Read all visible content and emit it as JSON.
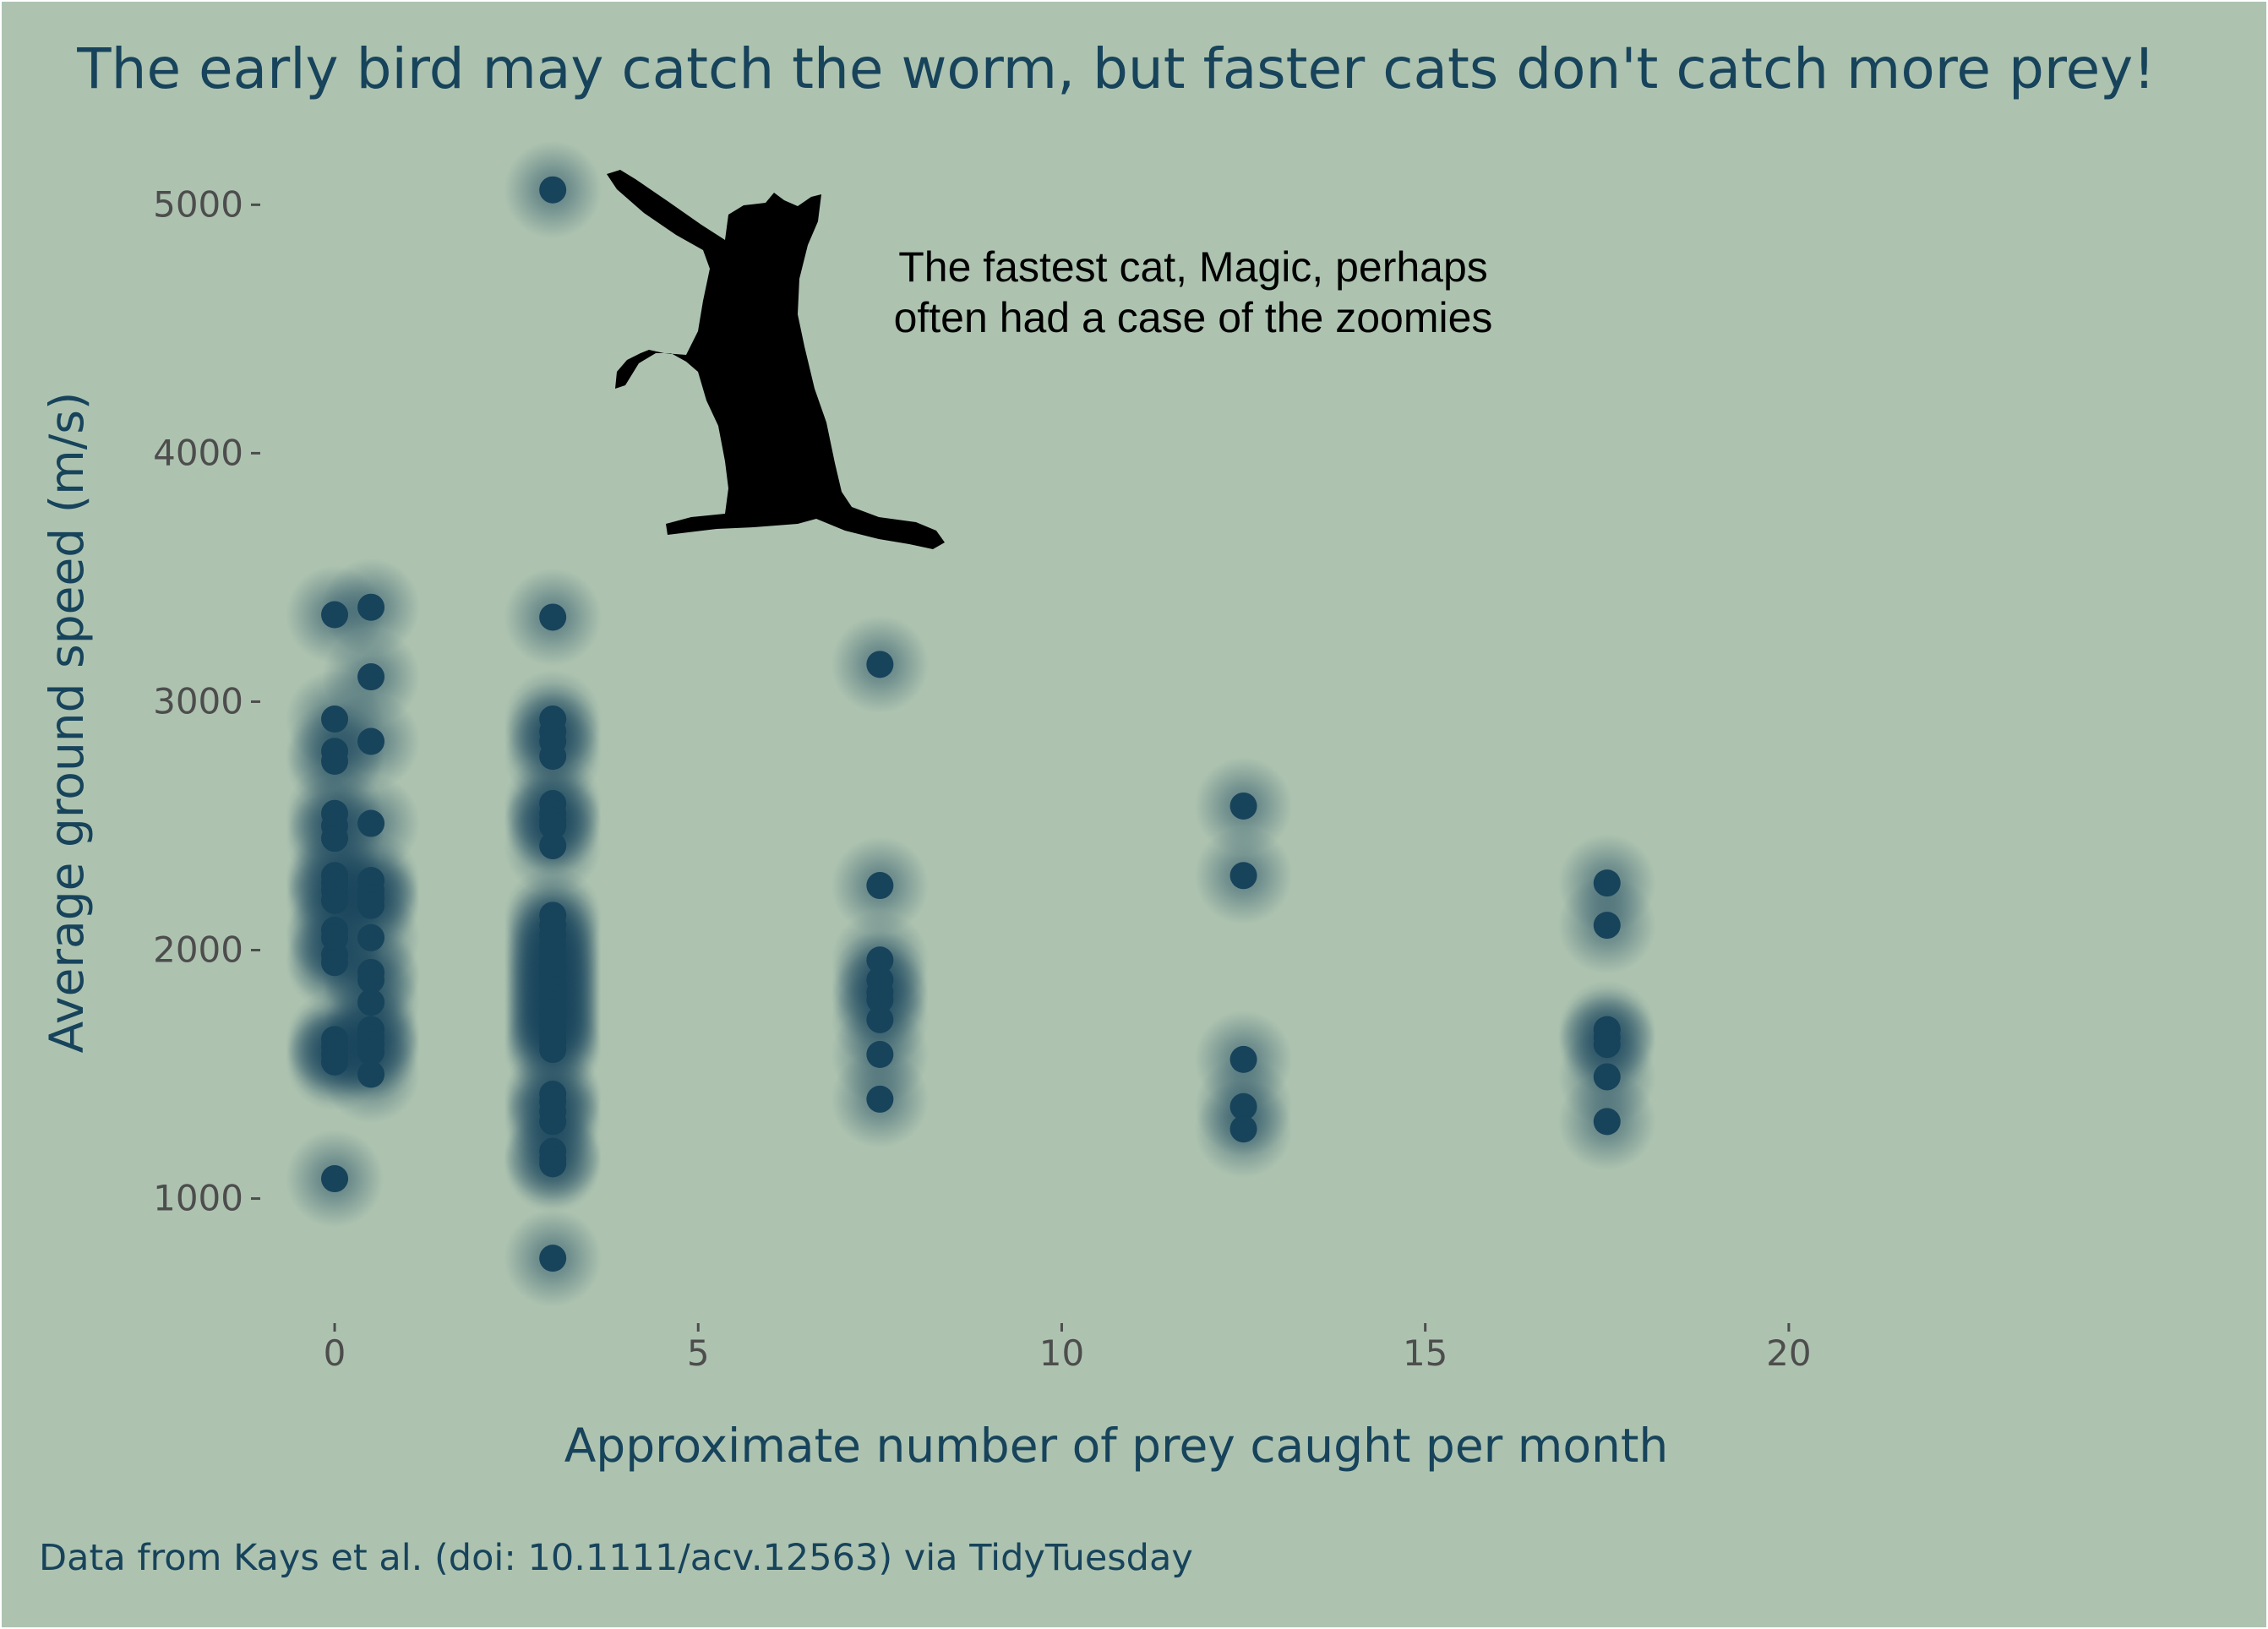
{
  "title": "The early bird may catch the worm, but faster cats don't catch more prey!",
  "caption": "Data from Kays et al. (doi: 10.1111/acv.12563) via TidyTuesday",
  "annotation": {
    "line1": "The fastest cat, Magic, perhaps",
    "line2": "often had a case of the zoomies"
  },
  "icons": {
    "cat": "cat-silhouette-icon"
  },
  "colors": {
    "background": "#adc3b0",
    "point": "#17435b",
    "text": "#17435b",
    "tick": "#4d4d4d",
    "frame": "#ffffff"
  },
  "chart_data": {
    "type": "scatter",
    "title": "The early bird may catch the worm, but faster cats don't catch more prey!",
    "xlabel": "Approximate number of prey caught per month",
    "ylabel": "Average ground speed (m/s)",
    "xlim": [
      -1,
      22.5
    ],
    "ylim": [
      570,
      5280
    ],
    "xticks": [
      0,
      5,
      10,
      15,
      20
    ],
    "yticks": [
      1000,
      2000,
      3000,
      4000,
      5000
    ],
    "grid": false,
    "legend": "none",
    "points": [
      {
        "x": 0,
        "y": 3350
      },
      {
        "x": 0,
        "y": 2930
      },
      {
        "x": 0,
        "y": 2800
      },
      {
        "x": 0,
        "y": 2760
      },
      {
        "x": 0,
        "y": 2550
      },
      {
        "x": 0,
        "y": 2500
      },
      {
        "x": 0,
        "y": 2450
      },
      {
        "x": 0,
        "y": 2300
      },
      {
        "x": 0,
        "y": 2270
      },
      {
        "x": 0,
        "y": 2240
      },
      {
        "x": 0,
        "y": 2200
      },
      {
        "x": 0,
        "y": 2080
      },
      {
        "x": 0,
        "y": 2050
      },
      {
        "x": 0,
        "y": 1980
      },
      {
        "x": 0,
        "y": 1950
      },
      {
        "x": 0,
        "y": 1640
      },
      {
        "x": 0,
        "y": 1610
      },
      {
        "x": 0,
        "y": 1580
      },
      {
        "x": 0,
        "y": 1550
      },
      {
        "x": 0,
        "y": 1080
      },
      {
        "x": 0.5,
        "y": 3380
      },
      {
        "x": 0.5,
        "y": 3100
      },
      {
        "x": 0.5,
        "y": 2840
      },
      {
        "x": 0.5,
        "y": 2510
      },
      {
        "x": 0.5,
        "y": 2280
      },
      {
        "x": 0.5,
        "y": 2240
      },
      {
        "x": 0.5,
        "y": 2210
      },
      {
        "x": 0.5,
        "y": 2180
      },
      {
        "x": 0.5,
        "y": 2050
      },
      {
        "x": 0.5,
        "y": 1910
      },
      {
        "x": 0.5,
        "y": 1880
      },
      {
        "x": 0.5,
        "y": 1790
      },
      {
        "x": 0.5,
        "y": 1680
      },
      {
        "x": 0.5,
        "y": 1650
      },
      {
        "x": 0.5,
        "y": 1620
      },
      {
        "x": 0.5,
        "y": 1590
      },
      {
        "x": 0.5,
        "y": 1500
      },
      {
        "x": 3,
        "y": 5060
      },
      {
        "x": 3,
        "y": 3340
      },
      {
        "x": 3,
        "y": 2930
      },
      {
        "x": 3,
        "y": 2880
      },
      {
        "x": 3,
        "y": 2840
      },
      {
        "x": 3,
        "y": 2780
      },
      {
        "x": 3,
        "y": 2590
      },
      {
        "x": 3,
        "y": 2550
      },
      {
        "x": 3,
        "y": 2520
      },
      {
        "x": 3,
        "y": 2500
      },
      {
        "x": 3,
        "y": 2420
      },
      {
        "x": 3,
        "y": 2140
      },
      {
        "x": 3,
        "y": 2100
      },
      {
        "x": 3,
        "y": 2060
      },
      {
        "x": 3,
        "y": 2020
      },
      {
        "x": 3,
        "y": 1990
      },
      {
        "x": 3,
        "y": 1960
      },
      {
        "x": 3,
        "y": 1930
      },
      {
        "x": 3,
        "y": 1900
      },
      {
        "x": 3,
        "y": 1870
      },
      {
        "x": 3,
        "y": 1840
      },
      {
        "x": 3,
        "y": 1810
      },
      {
        "x": 3,
        "y": 1780
      },
      {
        "x": 3,
        "y": 1750
      },
      {
        "x": 3,
        "y": 1720
      },
      {
        "x": 3,
        "y": 1690
      },
      {
        "x": 3,
        "y": 1660
      },
      {
        "x": 3,
        "y": 1630
      },
      {
        "x": 3,
        "y": 1600
      },
      {
        "x": 3,
        "y": 1420
      },
      {
        "x": 3,
        "y": 1390
      },
      {
        "x": 3,
        "y": 1350
      },
      {
        "x": 3,
        "y": 1310
      },
      {
        "x": 3,
        "y": 1190
      },
      {
        "x": 3,
        "y": 1160
      },
      {
        "x": 3,
        "y": 1140
      },
      {
        "x": 3,
        "y": 760
      },
      {
        "x": 7.5,
        "y": 3150
      },
      {
        "x": 7.5,
        "y": 2260
      },
      {
        "x": 7.5,
        "y": 1960
      },
      {
        "x": 7.5,
        "y": 1880
      },
      {
        "x": 7.5,
        "y": 1830
      },
      {
        "x": 7.5,
        "y": 1800
      },
      {
        "x": 7.5,
        "y": 1720
      },
      {
        "x": 7.5,
        "y": 1580
      },
      {
        "x": 7.5,
        "y": 1400
      },
      {
        "x": 12.5,
        "y": 2580
      },
      {
        "x": 12.5,
        "y": 2300
      },
      {
        "x": 12.5,
        "y": 1560
      },
      {
        "x": 12.5,
        "y": 1370
      },
      {
        "x": 12.5,
        "y": 1280
      },
      {
        "x": 17.5,
        "y": 2270
      },
      {
        "x": 17.5,
        "y": 2100
      },
      {
        "x": 17.5,
        "y": 1680
      },
      {
        "x": 17.5,
        "y": 1650
      },
      {
        "x": 17.5,
        "y": 1620
      },
      {
        "x": 17.5,
        "y": 1490
      },
      {
        "x": 17.5,
        "y": 1310
      }
    ]
  }
}
